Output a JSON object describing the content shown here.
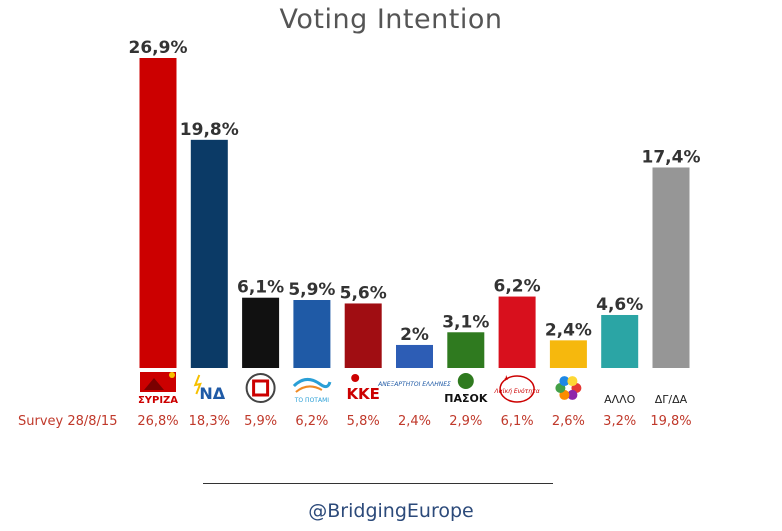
{
  "chart_data": {
    "type": "bar",
    "title": "Voting Intention",
    "categories": [
      "ΣΥΡΙΖΑ",
      "ΝΔ",
      "ΧΑ",
      "ΤΟ ΠΟΤΑΜΙ",
      "ΚΚΕ",
      "ΑΝΕΞΑΡΤΗΤΟΙ ΕΛΛΗΝΕΣ",
      "ΠΑΣΟΚ",
      "Λαϊκή Ενότητα",
      "ΕΚ",
      "ΑΛΛΟ",
      "ΔΓ/ΔΑ"
    ],
    "values": [
      26.9,
      19.8,
      6.1,
      5.9,
      5.6,
      2,
      3.1,
      6.2,
      2.4,
      4.6,
      17.4
    ],
    "value_labels": [
      "26,9%",
      "19,8%",
      "6,1%",
      "5,9%",
      "5,6%",
      "2%",
      "3,1%",
      "6,2%",
      "2,4%",
      "4,6%",
      "17,4%"
    ],
    "colors": [
      "#cc0000",
      "#0b3a66",
      "#111111",
      "#1f5aa6",
      "#a00d12",
      "#2d5db5",
      "#2f7a1f",
      "#d8101d",
      "#f6b80d",
      "#2ba5a5",
      "#969696"
    ],
    "ylim": [
      0,
      28
    ],
    "grid": false,
    "legend": "none",
    "survey": {
      "label": "Survey 28/8/15",
      "values": [
        "26,8%",
        "18,3%",
        "5,9%",
        "6,2%",
        "5,8%",
        "2,4%",
        "2,9%",
        "6,1%",
        "2,6%",
        "3,2%",
        "19,8%"
      ]
    },
    "logo_texts": {
      "syriza": "ΣΥΡΙΖΑ",
      "nd": "ΝΔ",
      "potami": "ΤΟ ΠΟΤΑΜΙ",
      "kke": "ΚΚΕ",
      "anel": "ΑΝΕΞΑΡΤΗΤΟΙ ΕΛΛΗΝΕΣ",
      "pasok": "ΠΑΣΟΚ",
      "le": "Λαϊκή Ενότητα",
      "allo": "ΑΛΛΟ",
      "dgda": "ΔΓ/ΔΑ"
    }
  },
  "footer": {
    "handle": "@BridgingEurope"
  }
}
